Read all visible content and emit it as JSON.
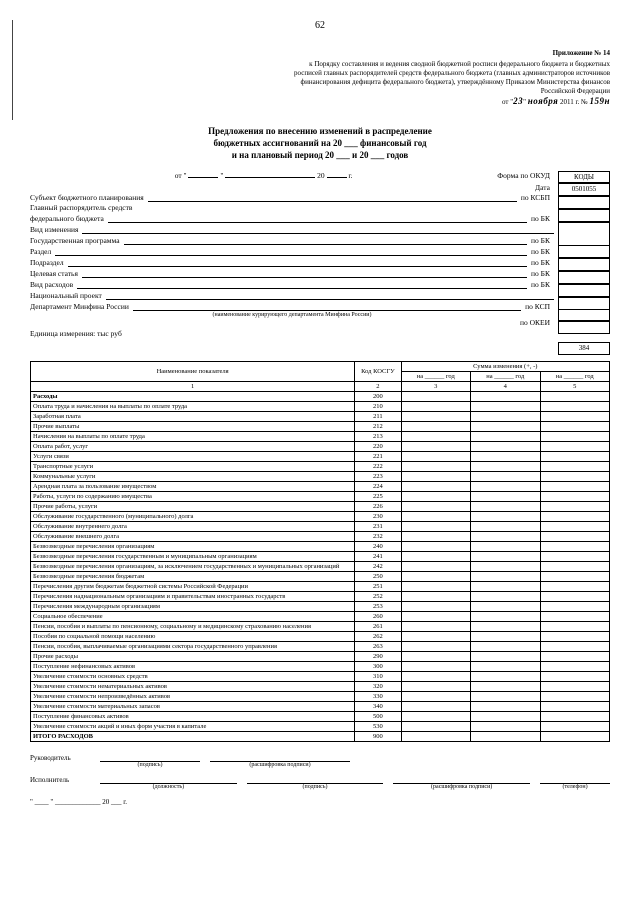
{
  "page_number": "62",
  "attachment": {
    "title": "Приложение № 14",
    "body": "к Порядку составления и ведения сводной бюджетной росписи федерального бюджета и бюджетных росписей главных распорядителей средств федерального бюджета (главных администраторов источников финансирования дефицита федерального бюджета), утверждённому Приказом Министерства финансов Российской Федерации",
    "date_day": "23",
    "date_month": "ноября",
    "date_year": "2011 г. №",
    "order_num": "159н"
  },
  "title": {
    "l1": "Предложения по внесению изменений в распределение",
    "l2": "бюджетных ассигнований на 20 ___ финансовый год",
    "l3": "и на плановый период 20 ___ и 20 ___ годов"
  },
  "form_label": "Форма по ОКУД",
  "codes_title": "КОДЫ",
  "code_okud": "0501055",
  "header": {
    "date": "Дата",
    "r1": "Субъект бюджетного планирования",
    "r1c": "по КСБП",
    "r2a": "Главный распорядитель средств",
    "r2b": "федерального бюджета",
    "r2c": "по БК",
    "r3": "Вид изменения",
    "r4": "Государственная программа",
    "r4c": "по БК",
    "r5": "Раздел",
    "r5c": "по БК",
    "r6": "Подраздел",
    "r6c": "по БК",
    "r7": "Целевая статья",
    "r7c": "по БК",
    "r8": "Вид расходов",
    "r8c": "по БК",
    "r9": "Национальный проект",
    "r10": "Департамент Минфина России",
    "r10c": "по КСП",
    "r10n": "(наименование курирующего департамента Минфина России)",
    "r11c": "по ОКЕИ",
    "r11v": "384",
    "unit": "Единица измерения: тыс руб"
  },
  "table": {
    "h1": "Наименование показателя",
    "h2": "Код КОСГУ",
    "h3": "Сумма изменения (+, -)",
    "y1": "на ______ год",
    "y2": "на ______ год",
    "y3": "на ______ год",
    "n1": "1",
    "n2": "2",
    "n3": "3",
    "n4": "4",
    "n5": "5",
    "rows": [
      {
        "name": "Расходы",
        "code": "200",
        "b": 1
      },
      {
        "name": "Оплата труда и начисления на выплаты по оплате труда",
        "code": "210"
      },
      {
        "name": "Заработная плата",
        "code": "211"
      },
      {
        "name": "Прочие выплаты",
        "code": "212"
      },
      {
        "name": "Начисления на выплаты по оплате труда",
        "code": "213"
      },
      {
        "name": "Оплата работ, услуг",
        "code": "220"
      },
      {
        "name": "Услуги связи",
        "code": "221"
      },
      {
        "name": "Транспортные услуги",
        "code": "222"
      },
      {
        "name": "Коммунальные услуги",
        "code": "223"
      },
      {
        "name": "Арендная плата за пользование имуществом",
        "code": "224"
      },
      {
        "name": "Работы, услуги по содержанию имущества",
        "code": "225"
      },
      {
        "name": "Прочие работы, услуги",
        "code": "226"
      },
      {
        "name": "Обслуживание государственного (муниципального) долга",
        "code": "230"
      },
      {
        "name": "Обслуживание внутреннего долга",
        "code": "231"
      },
      {
        "name": "Обслуживание внешнего долга",
        "code": "232"
      },
      {
        "name": "Безвозмездные перечисления организациям",
        "code": "240"
      },
      {
        "name": "Безвозмездные перечисления государственным и муниципальным организациям",
        "code": "241"
      },
      {
        "name": "Безвозмездные перечисления организациям, за исключением государственных и муниципальных организаций",
        "code": "242"
      },
      {
        "name": "Безвозмездные перечисления бюджетам",
        "code": "250"
      },
      {
        "name": "Перечисления другим бюджетам бюджетной системы Российской Федерации",
        "code": "251"
      },
      {
        "name": "Перечисления наднациональным организациям и правительствам иностранных государств",
        "code": "252"
      },
      {
        "name": "Перечисления международным организациям",
        "code": "253"
      },
      {
        "name": "Социальное обеспечение",
        "code": "260"
      },
      {
        "name": "Пенсии, пособия и выплаты по пенсионному, социальному и медицинскому страхованию населения",
        "code": "261"
      },
      {
        "name": "Пособия по социальной помощи населению",
        "code": "262"
      },
      {
        "name": "Пенсии, пособия, выплачиваемые организациями сектора государственного управления",
        "code": "263"
      },
      {
        "name": "Прочие расходы",
        "code": "290"
      },
      {
        "name": "Поступление нефинансовых активов",
        "code": "300"
      },
      {
        "name": "Увеличение стоимости основных средств",
        "code": "310"
      },
      {
        "name": "Увеличение стоимости нематериальных активов",
        "code": "320"
      },
      {
        "name": "Увеличение стоимости непроизведённых активов",
        "code": "330"
      },
      {
        "name": "Увеличение стоимости материальных запасов",
        "code": "340"
      },
      {
        "name": "Поступление финансовых активов",
        "code": "500"
      },
      {
        "name": "Увеличение стоимости акций и иных форм участия в капитале",
        "code": "530"
      },
      {
        "name": "ИТОГО РАСХОДОВ",
        "code": "900",
        "b": 1
      }
    ]
  },
  "footer": {
    "head": "Руководитель",
    "exec": "Исполнитель",
    "sign": "(подпись)",
    "decode": "(расшифровка подписи)",
    "pos": "(должность)",
    "tel": "(телефон)",
    "date": "\" ____ \" _____________ 20 ___ г."
  }
}
